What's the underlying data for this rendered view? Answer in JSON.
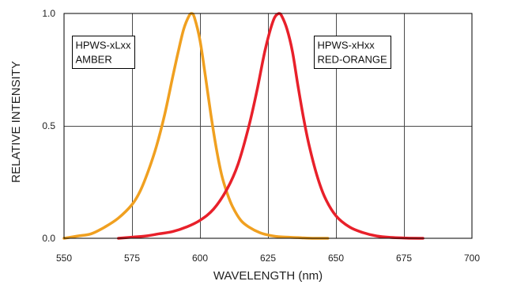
{
  "chart_data": {
    "type": "line",
    "title": "",
    "xlabel": "WAVELENGTH (nm)",
    "ylabel": "RELATIVE INTENSITY",
    "xlim": [
      550,
      700
    ],
    "ylim": [
      0,
      1.0
    ],
    "x_ticks": [
      550,
      575,
      600,
      625,
      650,
      675,
      700
    ],
    "x_tick_labels": [
      "550",
      "575",
      "600",
      "625",
      "650",
      "675",
      "700"
    ],
    "y_ticks": [
      0,
      0.5,
      1.0
    ],
    "y_tick_labels": [
      "0.0",
      "0.5",
      "1.0"
    ],
    "grid": true,
    "series": [
      {
        "name": "HPWS-xLxx AMBER",
        "color": "#f0a020",
        "x": [
          550,
          555,
          560,
          565,
          570,
          575,
          578,
          581,
          584,
          587,
          590,
          592,
          594,
          596,
          597,
          598,
          600,
          602,
          604,
          606,
          608,
          610,
          612,
          615,
          618,
          622,
          626,
          630,
          636,
          642,
          647
        ],
        "y": [
          0.0,
          0.01,
          0.02,
          0.05,
          0.09,
          0.15,
          0.21,
          0.3,
          0.41,
          0.55,
          0.72,
          0.83,
          0.93,
          0.99,
          1.0,
          0.98,
          0.88,
          0.72,
          0.55,
          0.4,
          0.28,
          0.2,
          0.14,
          0.08,
          0.05,
          0.025,
          0.012,
          0.006,
          0.003,
          0.0,
          0.0
        ]
      },
      {
        "name": "HPWS-xHxx RED-ORANGE",
        "color": "#e8202a",
        "x": [
          570,
          575,
          580,
          585,
          590,
          595,
          600,
          605,
          610,
          614,
          618,
          621,
          624,
          627,
          629,
          630,
          632,
          634,
          636,
          638,
          640,
          643,
          646,
          650,
          655,
          660,
          665,
          670,
          676,
          682
        ],
        "y": [
          0.0,
          0.005,
          0.01,
          0.02,
          0.03,
          0.05,
          0.08,
          0.13,
          0.22,
          0.33,
          0.5,
          0.66,
          0.84,
          0.97,
          1.0,
          0.99,
          0.93,
          0.83,
          0.68,
          0.54,
          0.42,
          0.28,
          0.18,
          0.1,
          0.05,
          0.025,
          0.01,
          0.004,
          0.001,
          0.0
        ]
      }
    ],
    "annotations": [
      {
        "lines": [
          "HPWS-xLxx",
          "AMBER"
        ],
        "x": 553,
        "y": 0.9
      },
      {
        "lines": [
          "HPWS-xHxx",
          "RED-ORANGE"
        ],
        "x": 642,
        "y": 0.9
      }
    ]
  }
}
